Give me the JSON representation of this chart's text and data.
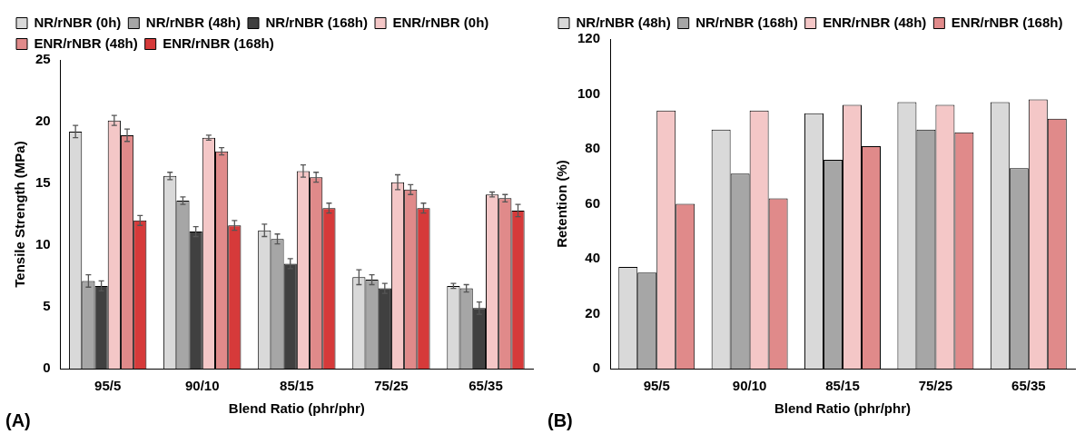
{
  "chart_data": [
    {
      "type": "bar",
      "xlabel": "Blend Ratio (phr/phr)",
      "ylabel": "Tensile Strength (MPa)",
      "categories": [
        "95/5",
        "90/10",
        "85/15",
        "75/25",
        "65/35"
      ],
      "series": [
        {
          "name": "NR/rNBR (0h)",
          "color": "#d9d9d9",
          "values": [
            19.2,
            15.6,
            11.2,
            7.4,
            6.7
          ],
          "errors": [
            0.5,
            0.3,
            0.5,
            0.6,
            0.2
          ]
        },
        {
          "name": "NR/rNBR (48h)",
          "color": "#a6a6a6",
          "values": [
            7.1,
            13.6,
            10.5,
            7.2,
            6.5
          ],
          "errors": [
            0.5,
            0.3,
            0.4,
            0.4,
            0.3
          ]
        },
        {
          "name": "NR/rNBR (168h)",
          "color": "#404040",
          "values": [
            6.7,
            11.1,
            8.5,
            6.5,
            4.9
          ],
          "errors": [
            0.4,
            0.4,
            0.4,
            0.4,
            0.5
          ]
        },
        {
          "name": "ENR/rNBR (0h)",
          "color": "#f4c7c7",
          "values": [
            20.1,
            18.7,
            16.0,
            15.1,
            14.1
          ],
          "errors": [
            0.4,
            0.2,
            0.5,
            0.6,
            0.2
          ]
        },
        {
          "name": "ENR/rNBR (48h)",
          "color": "#e08a8a",
          "values": [
            18.9,
            17.6,
            15.5,
            14.5,
            13.8
          ],
          "errors": [
            0.5,
            0.3,
            0.4,
            0.4,
            0.3
          ]
        },
        {
          "name": "ENR/rNBR (168h)",
          "color": "#d63a3a",
          "values": [
            12.0,
            11.6,
            13.0,
            13.0,
            12.8
          ],
          "errors": [
            0.4,
            0.4,
            0.4,
            0.4,
            0.5
          ]
        }
      ],
      "ylim": [
        0,
        25
      ],
      "yticks": [
        0,
        5,
        10,
        15,
        20,
        25
      ],
      "grid": false,
      "legend": "top",
      "annotations": [
        "(A)"
      ]
    },
    {
      "type": "bar",
      "xlabel": "Blend Ratio (phr/phr)",
      "ylabel": "Retention (%)",
      "categories": [
        "95/5",
        "90/10",
        "85/15",
        "75/25",
        "65/35"
      ],
      "series": [
        {
          "name": "NR/rNBR (48h)",
          "color": "#d9d9d9",
          "values": [
            37,
            87,
            93,
            97,
            97
          ]
        },
        {
          "name": "NR/rNBR (168h)",
          "color": "#a6a6a6",
          "values": [
            35,
            71,
            76,
            87,
            73
          ]
        },
        {
          "name": "ENR/rNBR (48h)",
          "color": "#f4c7c7",
          "values": [
            94,
            94,
            96,
            96,
            98
          ]
        },
        {
          "name": "ENR/rNBR (168h)",
          "color": "#e08a8a",
          "values": [
            60,
            62,
            81,
            86,
            91
          ]
        }
      ],
      "ylim": [
        0,
        120
      ],
      "yticks": [
        0,
        20,
        40,
        60,
        80,
        100,
        120
      ],
      "grid": false,
      "legend": "top",
      "annotations": [
        "(B)"
      ]
    }
  ]
}
